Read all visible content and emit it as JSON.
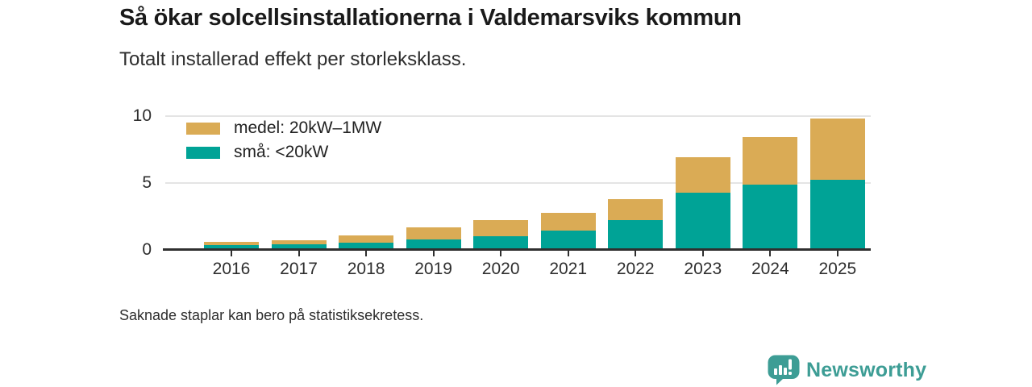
{
  "header": {
    "title": "Så ökar solcellsinstallationerna i Valdemarsviks kommun",
    "subtitle": "Totalt installerad effekt per storleksklass."
  },
  "chart_data": {
    "type": "bar",
    "stacked": true,
    "title": "Så ökar solcellsinstallationerna i Valdemarsviks kommun",
    "subtitle": "Totalt installerad effekt per storleksklass.",
    "categories": [
      "2016",
      "2017",
      "2018",
      "2019",
      "2020",
      "2021",
      "2022",
      "2023",
      "2024",
      "2025"
    ],
    "series": [
      {
        "name": "små: <20kW",
        "color": "#00A396",
        "values": [
          0.35,
          0.4,
          0.55,
          0.8,
          1.0,
          1.45,
          2.25,
          4.3,
          4.85,
          5.25
        ]
      },
      {
        "name": "medel: 20kW–1MW",
        "color": "#DAAB55",
        "values": [
          0.25,
          0.35,
          0.55,
          0.9,
          1.25,
          1.3,
          1.55,
          2.6,
          3.6,
          4.6
        ]
      }
    ],
    "xlabel": "",
    "ylabel": "",
    "yticks": [
      0,
      5,
      10
    ],
    "ylim": [
      0,
      10.8
    ],
    "grid": "horizontal",
    "legend_position": "top-left",
    "legend_order": [
      "medel: 20kW–1MW",
      "små: <20kW"
    ]
  },
  "footer": {
    "note": "Saknade staplar kan bero på statistiksekretess."
  },
  "branding": {
    "name": "Newsworthy",
    "color": "#3D9D95",
    "icon": "bar-chart-speech-bubble-icon"
  }
}
